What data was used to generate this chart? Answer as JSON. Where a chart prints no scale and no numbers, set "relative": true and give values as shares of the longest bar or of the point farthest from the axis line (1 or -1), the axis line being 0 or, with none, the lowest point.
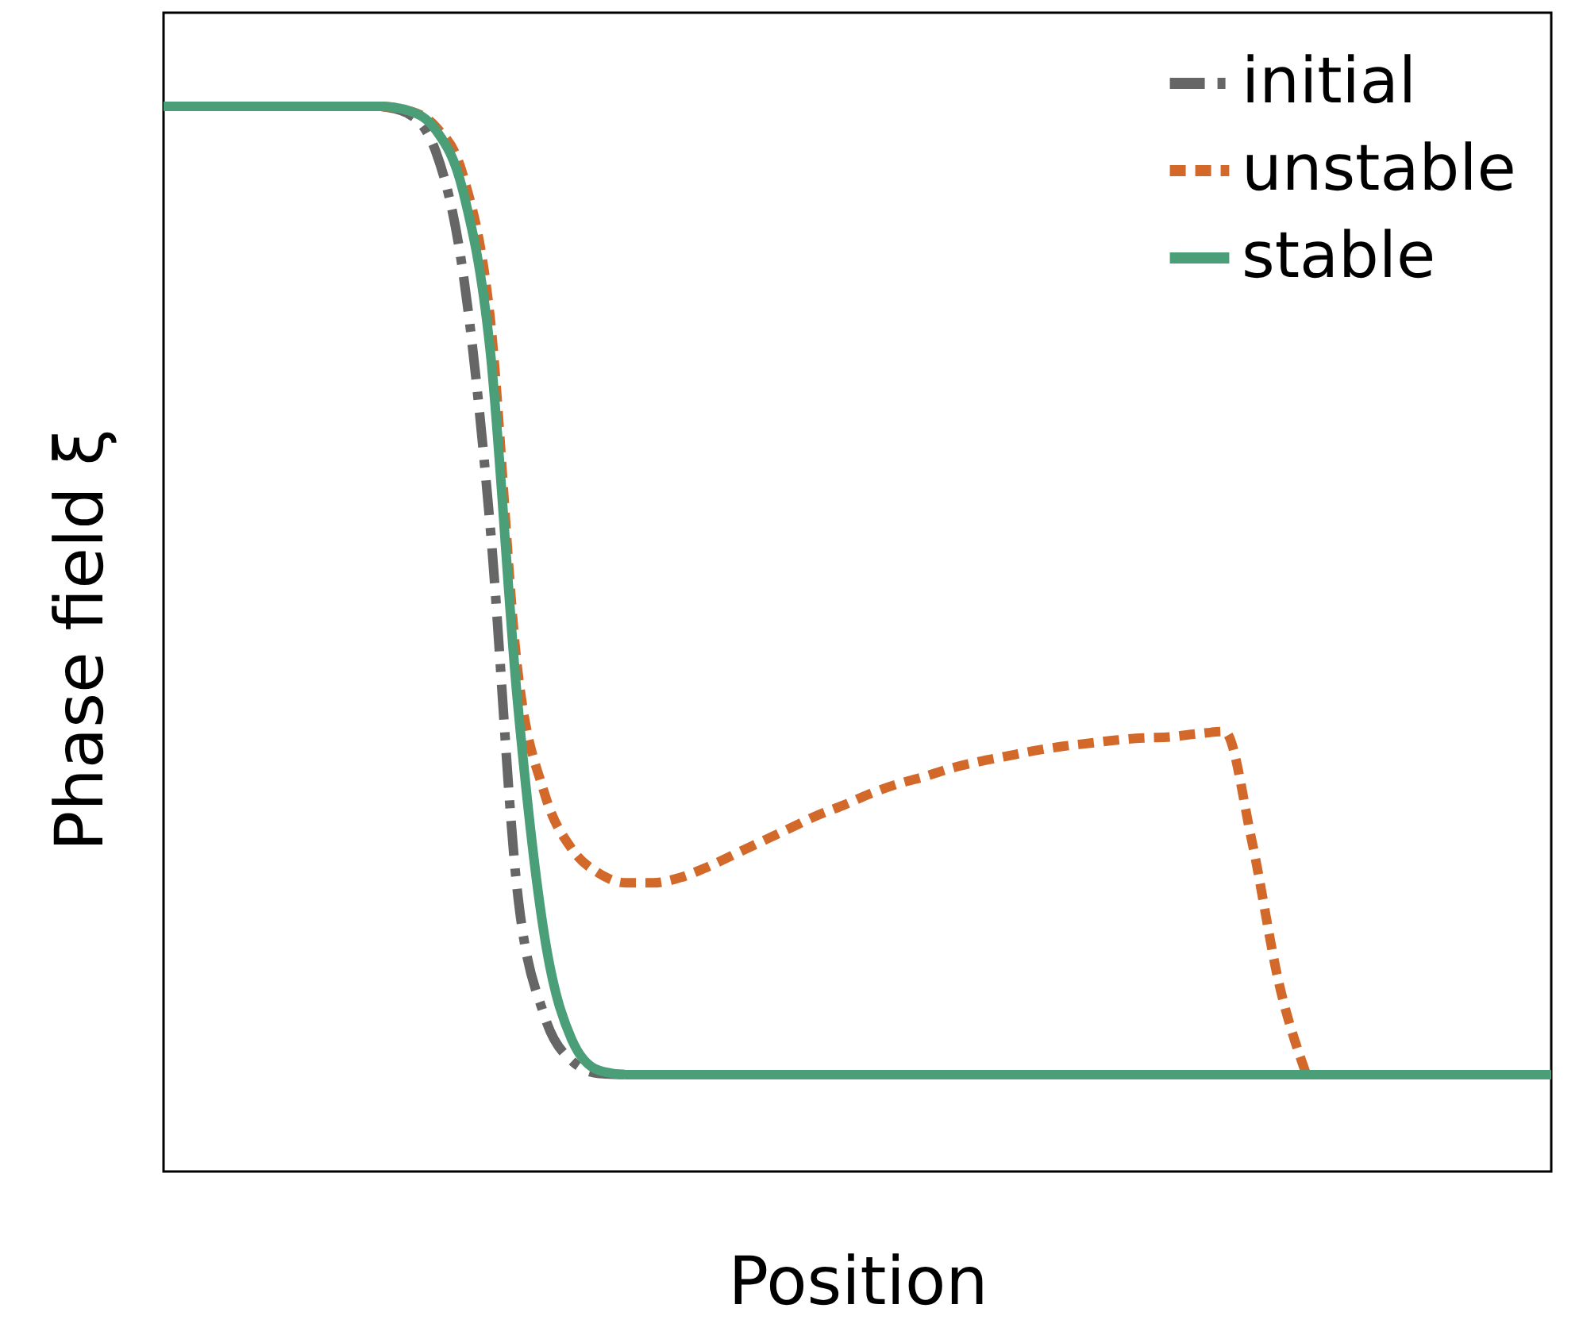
{
  "chart_data": {
    "type": "line",
    "relative": true,
    "xlabel": "Position",
    "ylabel": "Phase field ξ",
    "legend": "top right",
    "grid": false,
    "categories": [
      null,
      null,
      null,
      null,
      null,
      null,
      null,
      null,
      null,
      null,
      null,
      null,
      null,
      null,
      null,
      null,
      null,
      null,
      null,
      null,
      null,
      null,
      null,
      null,
      null,
      null,
      null,
      null,
      null,
      null,
      null,
      null,
      null,
      null,
      null,
      null,
      null,
      null,
      null,
      null,
      null,
      null,
      null,
      null,
      null,
      null,
      null,
      null,
      null,
      null,
      null,
      null
    ],
    "series": [
      {
        "name": "initial",
        "color": "#666666",
        "line_style": "dashdot",
        "values": [
          1,
          1,
          null,
          null,
          null,
          null,
          null,
          null,
          1,
          0.993,
          0.958,
          0.845,
          0.607,
          0.264,
          0.146,
          0.104,
          0.092,
          0.091,
          null,
          null,
          null,
          null,
          null,
          null,
          null,
          null,
          null,
          null,
          null,
          null,
          null,
          null,
          null,
          null,
          null,
          null,
          null,
          null,
          null,
          null,
          null,
          null,
          null,
          null,
          null,
          null,
          null,
          null,
          null,
          null,
          null,
          null
        ]
      },
      {
        "name": "unstable",
        "color": "#d2692a",
        "line_style": "dashed",
        "values": [
          null,
          null,
          null,
          null,
          null,
          null,
          null,
          null,
          1,
          0.996,
          0.981,
          0.936,
          0.802,
          0.474,
          0.355,
          0.303,
          0.28,
          0.271,
          0.271,
          0.276,
          0.286,
          0.298,
          0.31,
          0.322,
          0.334,
          0.344,
          0.355,
          0.364,
          0.371,
          0.379,
          0.385,
          0.39,
          0.395,
          0.399,
          0.402,
          0.405,
          0.407,
          0.408,
          0.411,
          0.413,
          0.31,
          0.176,
          0.091,
          null,
          null,
          null,
          null,
          null,
          null,
          null,
          null,
          null
        ]
      },
      {
        "name": "stable",
        "color": "#4a9e78",
        "line_style": "solid",
        "values": [
          1,
          1,
          1,
          1,
          1,
          1,
          1,
          1,
          1,
          0.996,
          0.978,
          0.921,
          0.772,
          0.444,
          0.221,
          0.124,
          0.095,
          0.091,
          0.091,
          0.091,
          0.091,
          0.091,
          0.091,
          0.091,
          0.091,
          0.091,
          0.091,
          0.091,
          0.091,
          0.091,
          0.091,
          0.091,
          0.091,
          0.091,
          0.091,
          0.091,
          0.091,
          0.091,
          0.091,
          0.091,
          0.091,
          0.091,
          0.091,
          0.091,
          0.091,
          0.091,
          0.091,
          0.091,
          0.091,
          0.091,
          0.091,
          0.091
        ]
      }
    ]
  }
}
